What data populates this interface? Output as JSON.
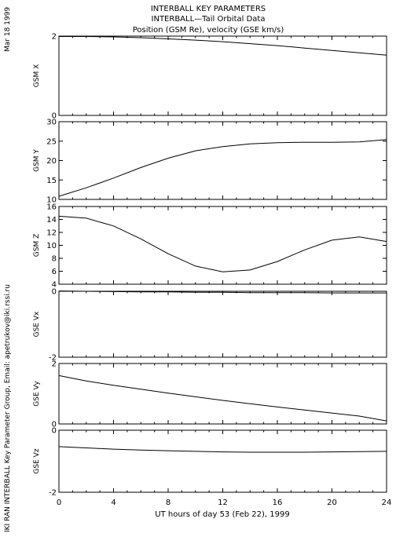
{
  "header": {
    "title_lines": [
      "INTERBALL KEY PARAMETERS",
      "INTERBALL—Tail Orbital Data",
      "Position (GSM Re), velocity (GSE km/s)"
    ]
  },
  "side": {
    "date": "Mar 18 1999",
    "credit": "IKI RAN INTERBALL Key Parameter Group, Email: apetrukov@iki.rssi.ru"
  },
  "xaxis": {
    "label": "UT hours of day  53 (Feb 22), 1999",
    "ticks": [
      "0",
      "4",
      "8",
      "12",
      "16",
      "20",
      "24"
    ],
    "range": [
      0,
      24
    ]
  },
  "chart_data": [
    {
      "type": "line",
      "ylabel": "GSM X",
      "ylim": [
        0,
        2
      ],
      "yticks": [
        "0",
        "2"
      ],
      "x": [
        0,
        2,
        4,
        6,
        8,
        10,
        12,
        14,
        16,
        18,
        20,
        22,
        24
      ],
      "y": [
        1.99,
        1.99,
        1.98,
        1.96,
        1.93,
        1.9,
        1.86,
        1.81,
        1.76,
        1.7,
        1.64,
        1.58,
        1.52
      ]
    },
    {
      "type": "line",
      "ylabel": "GSM Y",
      "ylim": [
        10,
        30
      ],
      "yticks": [
        "10",
        "15",
        "20",
        "25",
        "30"
      ],
      "x": [
        0,
        2,
        4,
        6,
        8,
        10,
        12,
        14,
        16,
        18,
        20,
        22,
        24
      ],
      "y": [
        10.8,
        13.0,
        15.5,
        18.2,
        20.6,
        22.5,
        23.6,
        24.3,
        24.6,
        24.7,
        24.7,
        24.8,
        25.4
      ]
    },
    {
      "type": "line",
      "ylabel": "GSM Z",
      "ylim": [
        4,
        16
      ],
      "yticks": [
        "4",
        "6",
        "8",
        "10",
        "12",
        "14",
        "16"
      ],
      "x": [
        0,
        2,
        4,
        6,
        8,
        10,
        12,
        14,
        16,
        18,
        20,
        22,
        24
      ],
      "y": [
        14.5,
        14.2,
        13.0,
        11.0,
        8.7,
        6.8,
        5.9,
        6.2,
        7.5,
        9.3,
        10.8,
        11.3,
        10.6
      ]
    },
    {
      "type": "line",
      "ylabel": "GSE Vx",
      "ylim": [
        -2,
        0
      ],
      "yticks": [
        "-2",
        "0"
      ],
      "x": [
        0,
        2,
        4,
        6,
        8,
        10,
        12,
        14,
        16,
        18,
        20,
        22,
        24
      ],
      "y": [
        0.01,
        0.0,
        -0.01,
        -0.02,
        -0.02,
        -0.03,
        -0.03,
        -0.04,
        -0.04,
        -0.04,
        -0.05,
        -0.05,
        -0.05
      ]
    },
    {
      "type": "line",
      "ylabel": "GSE Vy",
      "ylim": [
        0,
        2
      ],
      "yticks": [
        "0",
        "2"
      ],
      "x": [
        0,
        2,
        4,
        6,
        8,
        10,
        12,
        14,
        16,
        18,
        20,
        22,
        24
      ],
      "y": [
        1.6,
        1.42,
        1.28,
        1.15,
        1.02,
        0.9,
        0.78,
        0.67,
        0.56,
        0.46,
        0.36,
        0.26,
        0.1
      ]
    },
    {
      "type": "line",
      "ylabel": "GSE Vz",
      "ylim": [
        -2,
        0
      ],
      "yticks": [
        "-2",
        "0"
      ],
      "x": [
        0,
        2,
        4,
        6,
        8,
        10,
        12,
        14,
        16,
        18,
        20,
        22,
        24
      ],
      "y": [
        -0.53,
        -0.57,
        -0.61,
        -0.64,
        -0.66,
        -0.68,
        -0.7,
        -0.71,
        -0.71,
        -0.71,
        -0.7,
        -0.69,
        -0.68
      ]
    }
  ]
}
